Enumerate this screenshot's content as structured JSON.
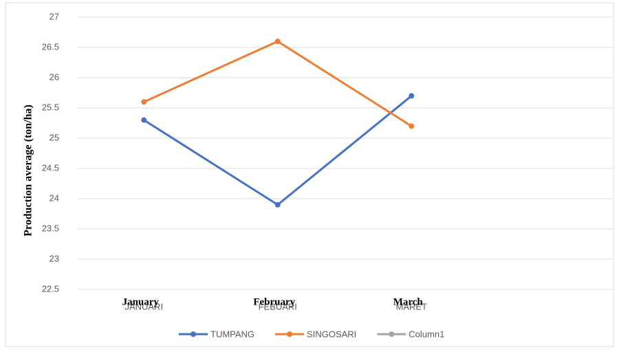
{
  "chart_data": {
    "type": "line",
    "y_axis_label": "Production average (ton/ha)",
    "categories": [
      "JANUARI",
      "FEBUARI",
      "MARET",
      null
    ],
    "category_overlay_labels": [
      "January",
      "February",
      "March"
    ],
    "series": [
      {
        "name": "TUMPANG",
        "color": "#4472c4",
        "values": [
          25.3,
          23.9,
          25.7,
          null
        ]
      },
      {
        "name": "SINGOSARI",
        "color": "#ed7d31",
        "values": [
          25.6,
          26.6,
          25.2,
          null
        ]
      },
      {
        "name": "Column1",
        "color": "#a5a5a5",
        "values": [
          null,
          null,
          null,
          null
        ]
      }
    ],
    "ylim": [
      22.5,
      27
    ],
    "yticks": [
      22.5,
      23,
      23.5,
      24,
      24.5,
      25,
      25.5,
      26,
      26.5,
      27
    ],
    "grid": true,
    "legend": "bottom"
  }
}
